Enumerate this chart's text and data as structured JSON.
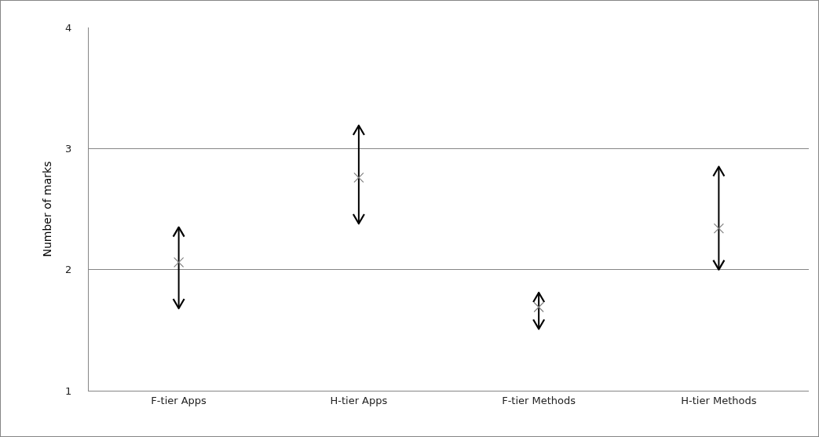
{
  "chart_data": {
    "type": "scatter",
    "ylabel": "Number of marks",
    "categories": [
      "F-tier Apps",
      "H-tier Apps",
      "F-tier Methods",
      "H-tier Methods"
    ],
    "values": [
      2.06,
      2.76,
      1.69,
      2.34
    ],
    "errors": [
      [
        1.68,
        2.35
      ],
      [
        2.38,
        3.19
      ],
      [
        1.51,
        1.81
      ],
      [
        2.0,
        2.85
      ]
    ],
    "color": "#808080",
    "marker": "cross",
    "ylim": [
      1,
      4
    ],
    "yticks": [
      1,
      2,
      3,
      4
    ],
    "grid": "y"
  }
}
